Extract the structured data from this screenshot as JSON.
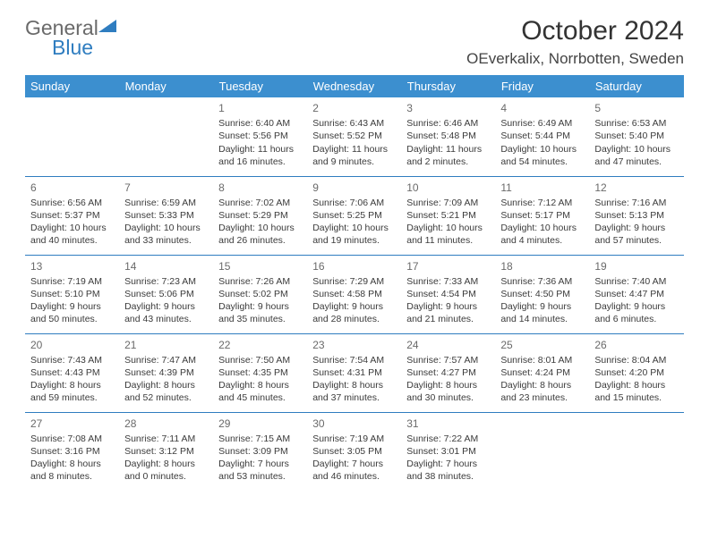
{
  "logo": {
    "part1": "General",
    "part2": "Blue",
    "color_gray": "#6a6a6a",
    "color_blue": "#2f7dc0"
  },
  "title": "October 2024",
  "location": "OEverkalix, Norrbotten, Sweden",
  "header_bg": "#3c8fcf",
  "header_fg": "#ffffff",
  "divider_color": "#2f7dc0",
  "weekdays": [
    "Sunday",
    "Monday",
    "Tuesday",
    "Wednesday",
    "Thursday",
    "Friday",
    "Saturday"
  ],
  "weeks": [
    [
      null,
      null,
      {
        "n": "1",
        "sunrise": "6:40 AM",
        "sunset": "5:56 PM",
        "daylight": "11 hours and 16 minutes."
      },
      {
        "n": "2",
        "sunrise": "6:43 AM",
        "sunset": "5:52 PM",
        "daylight": "11 hours and 9 minutes."
      },
      {
        "n": "3",
        "sunrise": "6:46 AM",
        "sunset": "5:48 PM",
        "daylight": "11 hours and 2 minutes."
      },
      {
        "n": "4",
        "sunrise": "6:49 AM",
        "sunset": "5:44 PM",
        "daylight": "10 hours and 54 minutes."
      },
      {
        "n": "5",
        "sunrise": "6:53 AM",
        "sunset": "5:40 PM",
        "daylight": "10 hours and 47 minutes."
      }
    ],
    [
      {
        "n": "6",
        "sunrise": "6:56 AM",
        "sunset": "5:37 PM",
        "daylight": "10 hours and 40 minutes."
      },
      {
        "n": "7",
        "sunrise": "6:59 AM",
        "sunset": "5:33 PM",
        "daylight": "10 hours and 33 minutes."
      },
      {
        "n": "8",
        "sunrise": "7:02 AM",
        "sunset": "5:29 PM",
        "daylight": "10 hours and 26 minutes."
      },
      {
        "n": "9",
        "sunrise": "7:06 AM",
        "sunset": "5:25 PM",
        "daylight": "10 hours and 19 minutes."
      },
      {
        "n": "10",
        "sunrise": "7:09 AM",
        "sunset": "5:21 PM",
        "daylight": "10 hours and 11 minutes."
      },
      {
        "n": "11",
        "sunrise": "7:12 AM",
        "sunset": "5:17 PM",
        "daylight": "10 hours and 4 minutes."
      },
      {
        "n": "12",
        "sunrise": "7:16 AM",
        "sunset": "5:13 PM",
        "daylight": "9 hours and 57 minutes."
      }
    ],
    [
      {
        "n": "13",
        "sunrise": "7:19 AM",
        "sunset": "5:10 PM",
        "daylight": "9 hours and 50 minutes."
      },
      {
        "n": "14",
        "sunrise": "7:23 AM",
        "sunset": "5:06 PM",
        "daylight": "9 hours and 43 minutes."
      },
      {
        "n": "15",
        "sunrise": "7:26 AM",
        "sunset": "5:02 PM",
        "daylight": "9 hours and 35 minutes."
      },
      {
        "n": "16",
        "sunrise": "7:29 AM",
        "sunset": "4:58 PM",
        "daylight": "9 hours and 28 minutes."
      },
      {
        "n": "17",
        "sunrise": "7:33 AM",
        "sunset": "4:54 PM",
        "daylight": "9 hours and 21 minutes."
      },
      {
        "n": "18",
        "sunrise": "7:36 AM",
        "sunset": "4:50 PM",
        "daylight": "9 hours and 14 minutes."
      },
      {
        "n": "19",
        "sunrise": "7:40 AM",
        "sunset": "4:47 PM",
        "daylight": "9 hours and 6 minutes."
      }
    ],
    [
      {
        "n": "20",
        "sunrise": "7:43 AM",
        "sunset": "4:43 PM",
        "daylight": "8 hours and 59 minutes."
      },
      {
        "n": "21",
        "sunrise": "7:47 AM",
        "sunset": "4:39 PM",
        "daylight": "8 hours and 52 minutes."
      },
      {
        "n": "22",
        "sunrise": "7:50 AM",
        "sunset": "4:35 PM",
        "daylight": "8 hours and 45 minutes."
      },
      {
        "n": "23",
        "sunrise": "7:54 AM",
        "sunset": "4:31 PM",
        "daylight": "8 hours and 37 minutes."
      },
      {
        "n": "24",
        "sunrise": "7:57 AM",
        "sunset": "4:27 PM",
        "daylight": "8 hours and 30 minutes."
      },
      {
        "n": "25",
        "sunrise": "8:01 AM",
        "sunset": "4:24 PM",
        "daylight": "8 hours and 23 minutes."
      },
      {
        "n": "26",
        "sunrise": "8:04 AM",
        "sunset": "4:20 PM",
        "daylight": "8 hours and 15 minutes."
      }
    ],
    [
      {
        "n": "27",
        "sunrise": "7:08 AM",
        "sunset": "3:16 PM",
        "daylight": "8 hours and 8 minutes."
      },
      {
        "n": "28",
        "sunrise": "7:11 AM",
        "sunset": "3:12 PM",
        "daylight": "8 hours and 0 minutes."
      },
      {
        "n": "29",
        "sunrise": "7:15 AM",
        "sunset": "3:09 PM",
        "daylight": "7 hours and 53 minutes."
      },
      {
        "n": "30",
        "sunrise": "7:19 AM",
        "sunset": "3:05 PM",
        "daylight": "7 hours and 46 minutes."
      },
      {
        "n": "31",
        "sunrise": "7:22 AM",
        "sunset": "3:01 PM",
        "daylight": "7 hours and 38 minutes."
      },
      null,
      null
    ]
  ],
  "labels": {
    "sunrise": "Sunrise:",
    "sunset": "Sunset:",
    "daylight": "Daylight:"
  }
}
